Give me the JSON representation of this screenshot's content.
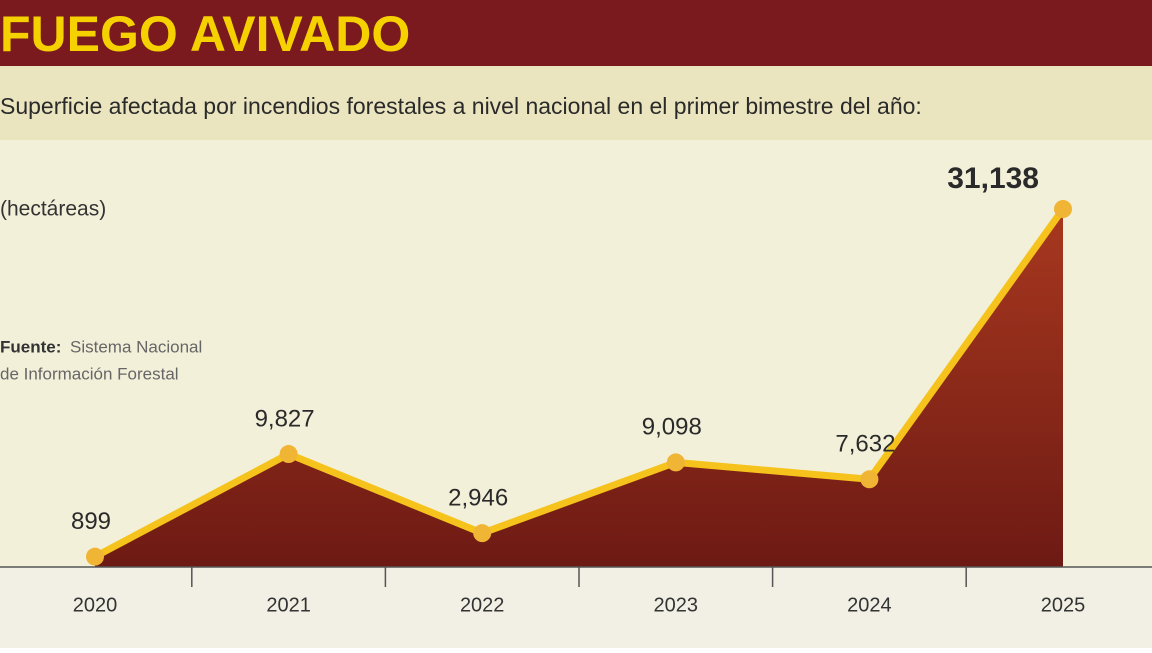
{
  "chart_data": {
    "type": "area",
    "title": "FUEGO AVIVADO",
    "subtitle": "Superficie afectada por incendios forestales a nivel nacional en el primer bimestre del año:",
    "unit_label": "(hectáreas)",
    "source_label": "Fuente:",
    "source_lines": [
      "Sistema Nacional",
      "de Información Forestal"
    ],
    "categories": [
      "2020",
      "2021",
      "2022",
      "2023",
      "2024",
      "2025"
    ],
    "values": [
      899,
      9827,
      2946,
      9098,
      7632,
      31138
    ],
    "value_labels": [
      "899",
      "9,827",
      "2,946",
      "9,098",
      "7,632",
      "31,138"
    ],
    "line_color": "#f5c31c",
    "area_color": "#8e2a1c",
    "point_color": "#f0b535"
  }
}
